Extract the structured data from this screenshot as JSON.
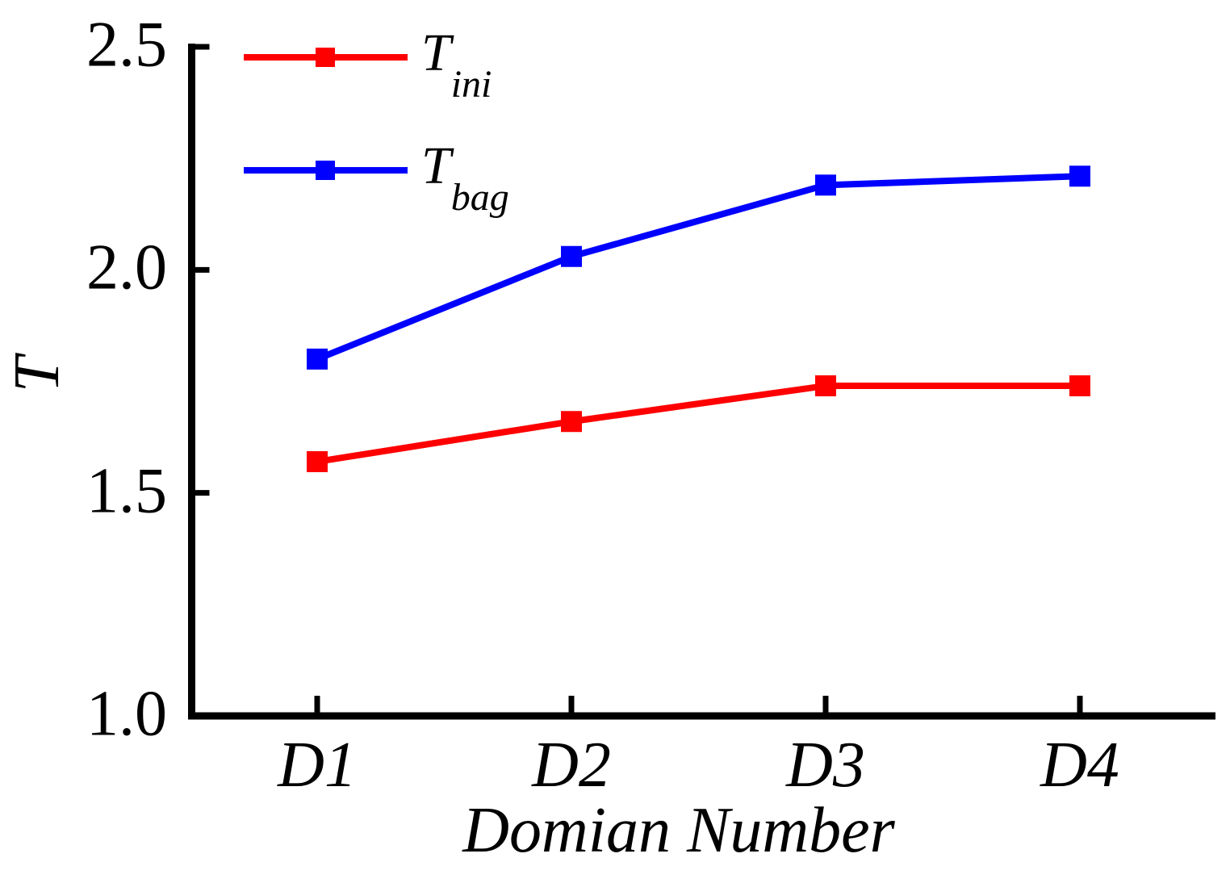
{
  "chart_data": {
    "type": "line",
    "title": "",
    "xlabel": "Domian Number",
    "ylabel": "T",
    "categories": [
      "D1",
      "D2",
      "D3",
      "D4"
    ],
    "y_ticks": [
      {
        "label": "1.0",
        "value": 1.0
      },
      {
        "label": "1.5",
        "value": 1.5
      },
      {
        "label": "2.0",
        "value": 2.0
      },
      {
        "label": "2.5",
        "value": 2.5
      }
    ],
    "ylim": [
      1.0,
      2.5
    ],
    "grid": false,
    "legend_position": "top-left",
    "marker_shape": "square",
    "axis_color": "#000000",
    "series": [
      {
        "name_main": "T",
        "name_sub": "ini",
        "color": "#ff0000",
        "marker": "square",
        "values": [
          1.57,
          1.66,
          1.74,
          1.74
        ]
      },
      {
        "name_main": "T",
        "name_sub": "bag",
        "color": "#0000ff",
        "marker": "square",
        "values": [
          1.8,
          2.03,
          2.19,
          2.21
        ]
      }
    ]
  }
}
